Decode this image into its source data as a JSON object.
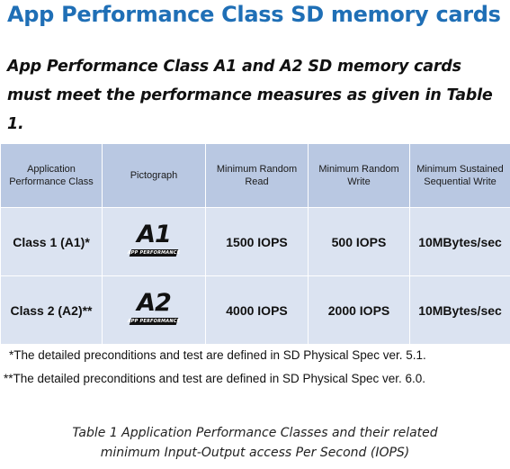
{
  "title": "App Performance Class SD memory cards",
  "intro": "App Performance Class A1 and A2 SD memory cards must meet the performance measures as given in Table 1.",
  "table": {
    "headers": [
      "Application Performance Class",
      "Pictograph",
      "Minimum Random Read",
      "Minimum Random  Write",
      "Minimum Sustained Sequential Write"
    ],
    "rows": [
      {
        "class": "Class 1 (A1)*",
        "pictograph": {
          "letters": "A1",
          "subtitle": "APP PERFORMANCE"
        },
        "random_read": "1500 IOPS",
        "random_write": "500 IOPS",
        "sequential_write": "10MBytes/sec"
      },
      {
        "class": "Class 2 (A2)**",
        "pictograph": {
          "letters": "A2",
          "subtitle": "APP PERFORMANCE"
        },
        "random_read": "4000 IOPS",
        "random_write": "2000 IOPS",
        "sequential_write": "10MBytes/sec"
      }
    ]
  },
  "notes": [
    "*The detailed preconditions and test are defined in SD Physical Spec ver. 5.1.",
    "**The detailed preconditions and test are defined in SD Physical Spec ver. 6.0."
  ],
  "caption": {
    "line1": "Table 1 Application Performance Classes and their related",
    "line2": "minimum Input-Output access Per Second (IOPS)"
  },
  "colors": {
    "title": "#1f6fb6",
    "header_bg": "#b9c8e2",
    "cell_bg": "#dbe3f1"
  }
}
